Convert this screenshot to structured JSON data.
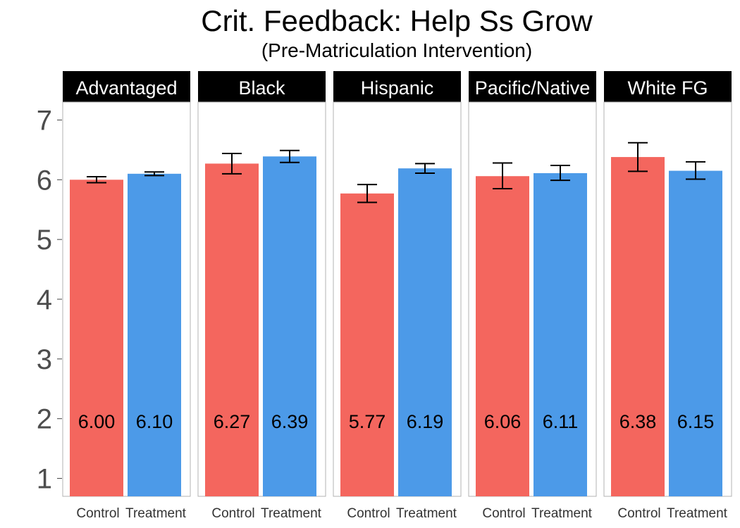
{
  "chart_data": {
    "type": "bar",
    "title": "Crit. Feedback: Help Ss Grow",
    "subtitle": "(Pre-Matriculation Intervention)",
    "xlabel": "",
    "ylabel": "",
    "ylim": [
      0.7,
      7.3
    ],
    "yticks": [
      "1",
      "2",
      "3",
      "4",
      "5",
      "6",
      "7"
    ],
    "categories": [
      "Control",
      "Treatment"
    ],
    "grid": false,
    "legend": "none",
    "colors": {
      "Control": "#F4665E",
      "Treatment": "#4C9AE8"
    },
    "panels": [
      {
        "name": "Advantaged",
        "values": [
          6.0,
          6.1
        ],
        "labels": [
          "6.00",
          "6.10"
        ],
        "err_low": [
          5.95,
          6.07
        ],
        "err_high": [
          6.05,
          6.13
        ]
      },
      {
        "name": "Black",
        "values": [
          6.27,
          6.39
        ],
        "labels": [
          "6.27",
          "6.39"
        ],
        "err_low": [
          6.1,
          6.29
        ],
        "err_high": [
          6.44,
          6.49
        ]
      },
      {
        "name": "Hispanic",
        "values": [
          5.77,
          6.19
        ],
        "labels": [
          "5.77",
          "6.19"
        ],
        "err_low": [
          5.62,
          6.11
        ],
        "err_high": [
          5.92,
          6.27
        ]
      },
      {
        "name": "Pacific/Native",
        "values": [
          6.06,
          6.11
        ],
        "labels": [
          "6.06",
          "6.11"
        ],
        "err_low": [
          5.85,
          5.99
        ],
        "err_high": [
          6.28,
          6.24
        ]
      },
      {
        "name": "White FG",
        "values": [
          6.38,
          6.15
        ],
        "labels": [
          "6.38",
          "6.15"
        ],
        "err_low": [
          6.14,
          6.01
        ],
        "err_high": [
          6.62,
          6.3
        ]
      }
    ]
  }
}
